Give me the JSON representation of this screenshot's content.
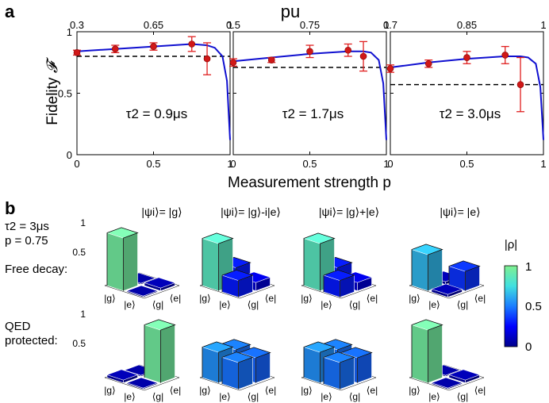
{
  "panel_a": {
    "label": "a",
    "top_axis_title": "pu",
    "x_axis_title": "Measurement strength p",
    "y_axis_title": "Fidelity",
    "y_axis_symbol": "𝓕"
  },
  "panel_b": {
    "label": "b",
    "params": [
      "τ2 = 3μs",
      "p = 0.75"
    ],
    "row_labels": [
      "Free decay:",
      "QED",
      "protected:"
    ],
    "state_titles": [
      "|ψi⟩= |g⟩",
      "|ψi⟩= |g⟩-i|e⟩",
      "|ψi⟩= |g⟩+|e⟩",
      "|ψi⟩= |e⟩"
    ],
    "axis_tick_labels": [
      "|g⟩",
      "|e⟩",
      "⟨g|",
      "⟨e|"
    ],
    "z_ticks": [
      "1",
      "0.5"
    ],
    "colorbar": {
      "title": "|ρ|",
      "ticks": [
        "1",
        "0.5",
        "0"
      ],
      "colors": [
        "#00008b",
        "#0000ff",
        "#1a7dff",
        "#40e0e0",
        "#80f090"
      ]
    },
    "bars": {
      "free_decay": [
        [
          [
            0.95,
            0.02
          ],
          [
            0.02,
            0.05
          ]
        ],
        [
          [
            0.85,
            0.3
          ],
          [
            0.3,
            0.15
          ]
        ],
        [
          [
            0.85,
            0.3
          ],
          [
            0.3,
            0.15
          ]
        ],
        [
          [
            0.65,
            0.05
          ],
          [
            0.05,
            0.35
          ]
        ]
      ],
      "qed_protected": [
        [
          [
            0.05,
            0.02
          ],
          [
            0.02,
            0.95
          ]
        ],
        [
          [
            0.55,
            0.48
          ],
          [
            0.48,
            0.45
          ]
        ],
        [
          [
            0.55,
            0.48
          ],
          [
            0.48,
            0.45
          ]
        ],
        [
          [
            0.95,
            0.02
          ],
          [
            0.02,
            0.05
          ]
        ]
      ]
    }
  },
  "chart_data": [
    {
      "type": "line",
      "title": "τ2 = 0.9μs",
      "xlabel": "Measurement strength p",
      "ylabel": "Fidelity 𝓕",
      "xlim": [
        0,
        1
      ],
      "ylim": [
        0,
        1
      ],
      "x_ticks": [
        "0",
        "0.5",
        "1"
      ],
      "y_ticks": [
        "0",
        "0.5",
        "1"
      ],
      "top_ticks": [
        "0.3",
        "0.65",
        "1"
      ],
      "top_tick_positions": [
        0,
        0.5,
        1
      ],
      "series": [
        {
          "name": "data",
          "x": [
            0,
            0.25,
            0.5,
            0.75,
            0.85
          ],
          "y": [
            0.83,
            0.86,
            0.88,
            0.9,
            0.78
          ],
          "err": [
            0.02,
            0.03,
            0.03,
            0.06,
            0.13
          ]
        },
        {
          "name": "theory",
          "x": [
            0,
            0.25,
            0.5,
            0.75,
            0.85,
            0.9,
            0.95,
            0.98,
            1.0
          ],
          "y": [
            0.84,
            0.86,
            0.88,
            0.9,
            0.89,
            0.87,
            0.8,
            0.6,
            0.12
          ]
        }
      ],
      "reference": 0.8
    },
    {
      "type": "line",
      "title": "τ2 = 1.7μs",
      "xlabel": "Measurement strength p",
      "ylabel": "Fidelity 𝓕",
      "xlim": [
        0,
        1
      ],
      "ylim": [
        0,
        1
      ],
      "x_ticks": [
        "0",
        "0.5",
        "1"
      ],
      "y_ticks": [
        "0",
        "0.5",
        "1"
      ],
      "top_ticks": [
        "0.5",
        "0.75",
        "1"
      ],
      "top_tick_positions": [
        0,
        0.5,
        1
      ],
      "series": [
        {
          "name": "data",
          "x": [
            0,
            0.25,
            0.5,
            0.75,
            0.85
          ],
          "y": [
            0.75,
            0.77,
            0.84,
            0.85,
            0.8
          ],
          "err": [
            0.03,
            0.02,
            0.05,
            0.05,
            0.12
          ]
        },
        {
          "name": "theory",
          "x": [
            0,
            0.25,
            0.5,
            0.75,
            0.85,
            0.9,
            0.95,
            0.98,
            1.0
          ],
          "y": [
            0.76,
            0.79,
            0.82,
            0.84,
            0.84,
            0.83,
            0.77,
            0.58,
            0.12
          ]
        }
      ],
      "reference": 0.71
    },
    {
      "type": "line",
      "title": "τ2 = 3.0μs",
      "xlabel": "Measurement strength p",
      "ylabel": "Fidelity 𝓕",
      "xlim": [
        0,
        1
      ],
      "ylim": [
        0,
        1
      ],
      "x_ticks": [
        "0",
        "0.5",
        "1"
      ],
      "y_ticks": [
        "0",
        "0.5",
        "1"
      ],
      "top_ticks": [
        "0.7",
        "0.85",
        "1"
      ],
      "top_tick_positions": [
        0,
        0.5,
        1
      ],
      "series": [
        {
          "name": "data",
          "x": [
            0,
            0.25,
            0.5,
            0.75,
            0.85
          ],
          "y": [
            0.7,
            0.74,
            0.79,
            0.81,
            0.57
          ],
          "err": [
            0.03,
            0.03,
            0.05,
            0.07,
            0.22
          ]
        },
        {
          "name": "theory",
          "x": [
            0,
            0.25,
            0.5,
            0.75,
            0.85,
            0.9,
            0.95,
            0.98,
            1.0
          ],
          "y": [
            0.71,
            0.75,
            0.78,
            0.8,
            0.8,
            0.79,
            0.74,
            0.55,
            0.12
          ]
        }
      ],
      "reference": 0.57
    }
  ]
}
